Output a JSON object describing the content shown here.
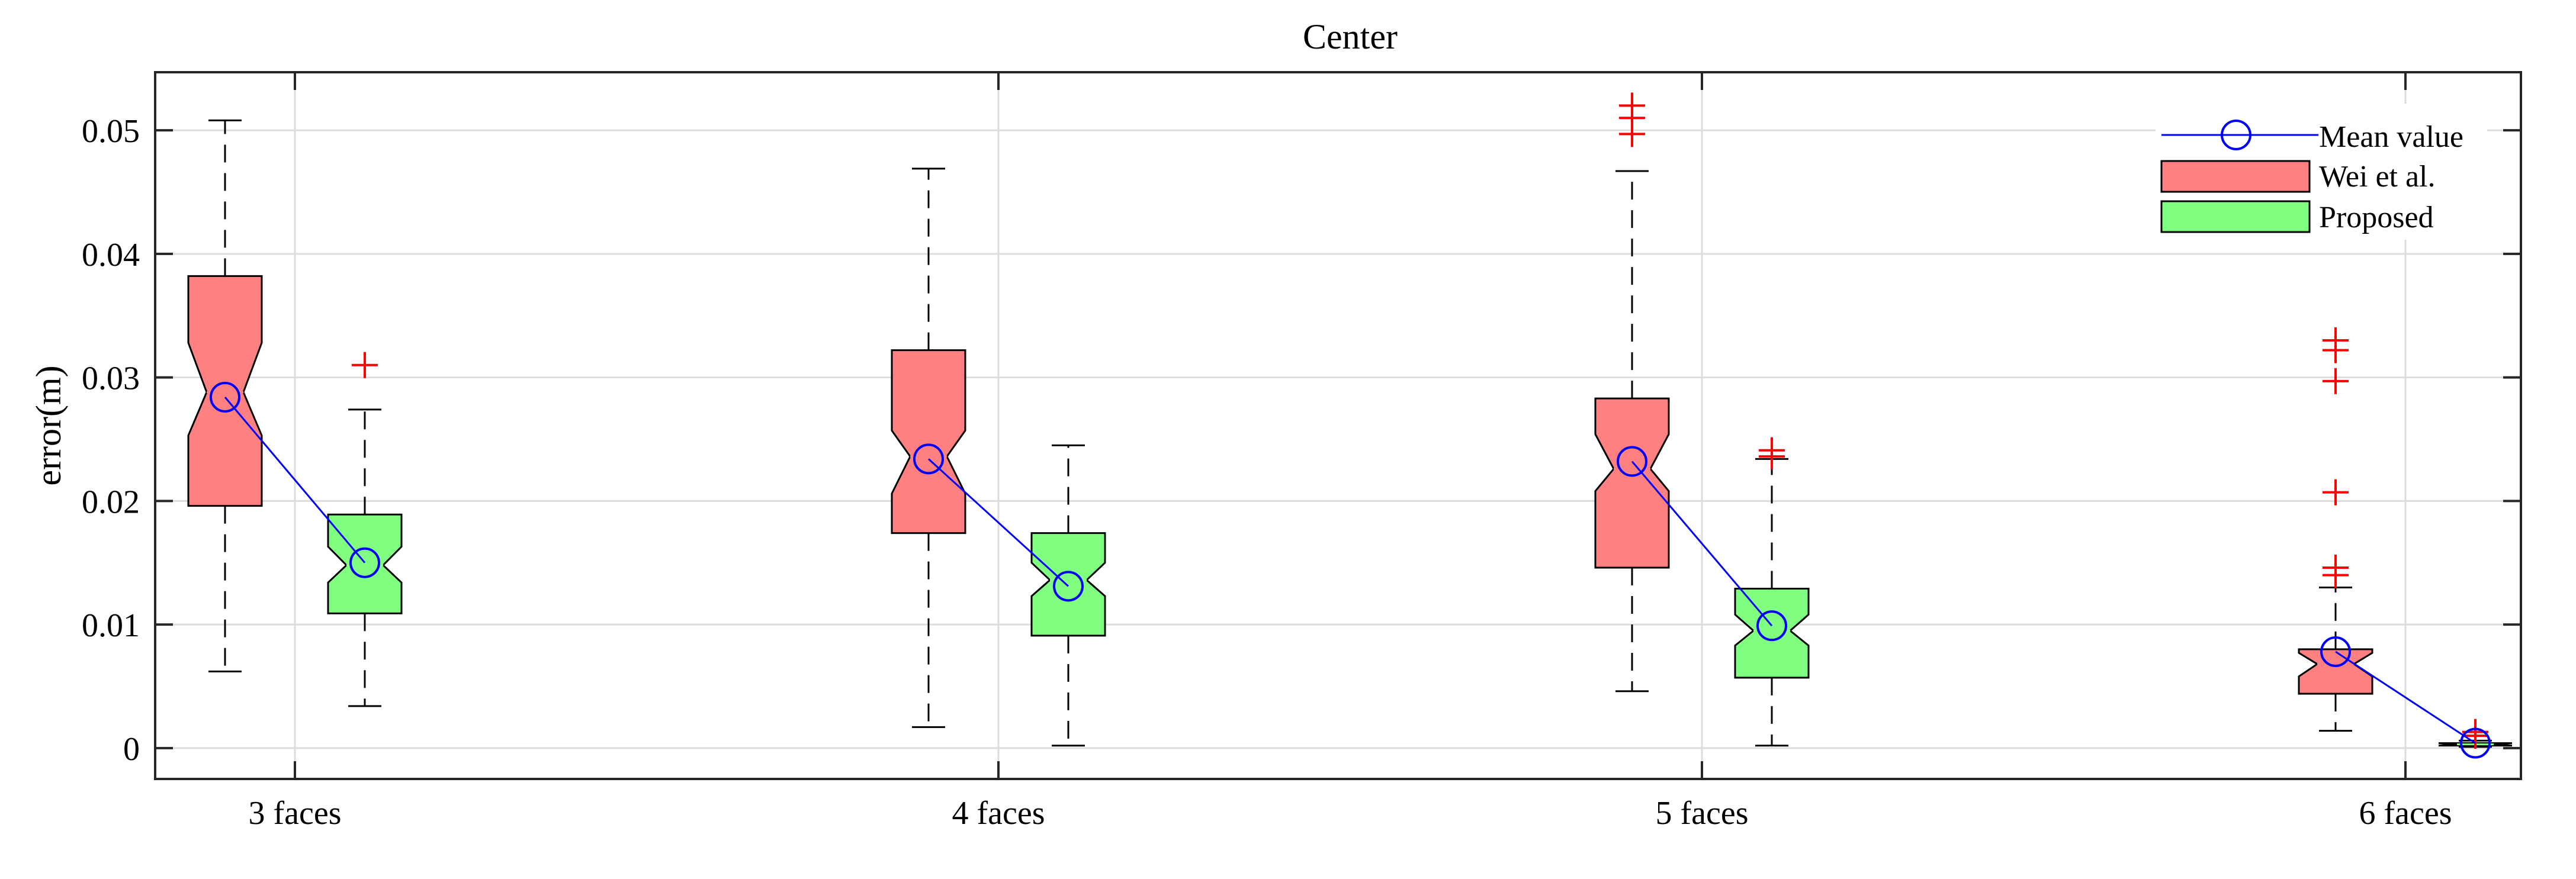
{
  "chart_data": {
    "type": "box",
    "title": "Center",
    "xlabel": "",
    "ylabel": "error(m)",
    "ylim": [
      -0.0025,
      0.0547
    ],
    "yticks": [
      0,
      0.01,
      0.02,
      0.03,
      0.04,
      0.05
    ],
    "ytick_labels": [
      "0",
      "0.01",
      "0.02",
      "0.03",
      "0.04",
      "0.05"
    ],
    "categories": [
      "3 faces",
      "4 faces",
      "5 faces",
      "6 faces"
    ],
    "grid": true,
    "notched": true,
    "legend_position": "top-right",
    "legend": [
      "Mean value",
      "Wei et al.",
      "Proposed"
    ],
    "series": [
      {
        "name": "Wei et al.",
        "color": "#ff8080",
        "boxes": [
          {
            "whisker_low": 0.0062,
            "q1": 0.0196,
            "median": 0.0288,
            "q3": 0.0382,
            "whisker_high": 0.0508,
            "notch_low": 0.0253,
            "notch_high": 0.0328,
            "mean": 0.0284,
            "outliers": []
          },
          {
            "whisker_low": 0.0017,
            "q1": 0.0174,
            "median": 0.0236,
            "q3": 0.0322,
            "whisker_high": 0.0469,
            "notch_low": 0.0206,
            "notch_high": 0.0257,
            "mean": 0.0234,
            "outliers": []
          },
          {
            "whisker_low": 0.0046,
            "q1": 0.0146,
            "median": 0.0226,
            "q3": 0.0283,
            "whisker_high": 0.0467,
            "notch_low": 0.0208,
            "notch_high": 0.0254,
            "mean": 0.0232,
            "outliers": [
              0.0497,
              0.051,
              0.052
            ]
          },
          {
            "whisker_low": 0.0014,
            "q1": 0.0044,
            "median": 0.0068,
            "q3": 0.008,
            "whisker_high": 0.013,
            "notch_low": 0.0058,
            "notch_high": 0.0077,
            "mean": 0.0078,
            "outliers": [
              0.014,
              0.0146,
              0.0207,
              0.0297,
              0.0322,
              0.033
            ]
          }
        ]
      },
      {
        "name": "Proposed",
        "color": "#80ff80",
        "boxes": [
          {
            "whisker_low": 0.0034,
            "q1": 0.0109,
            "median": 0.0148,
            "q3": 0.0189,
            "whisker_high": 0.0274,
            "notch_low": 0.0134,
            "notch_high": 0.0163,
            "mean": 0.015,
            "outliers": [
              0.031
            ]
          },
          {
            "whisker_low": 0.0002,
            "q1": 0.0091,
            "median": 0.0136,
            "q3": 0.0174,
            "whisker_high": 0.0245,
            "notch_low": 0.0123,
            "notch_high": 0.015,
            "mean": 0.0131,
            "outliers": []
          },
          {
            "whisker_low": 0.0002,
            "q1": 0.0057,
            "median": 0.0095,
            "q3": 0.0129,
            "whisker_high": 0.0234,
            "notch_low": 0.0083,
            "notch_high": 0.0108,
            "mean": 0.0099,
            "outliers": [
              0.0236,
              0.0241
            ]
          },
          {
            "whisker_low": 0.0001,
            "q1": 0.0002,
            "median": 0.0003,
            "q3": 0.0004,
            "whisker_high": 0.0006,
            "notch_low": 0.0002,
            "notch_high": 0.0004,
            "mean": 0.0004,
            "outliers": [
              0.001,
              0.0013
            ]
          }
        ]
      }
    ],
    "colors": {
      "mean_line": "#0000ff",
      "outlier": "#ff0000",
      "axis": "#262626",
      "grid": "#dcdcdc"
    }
  }
}
